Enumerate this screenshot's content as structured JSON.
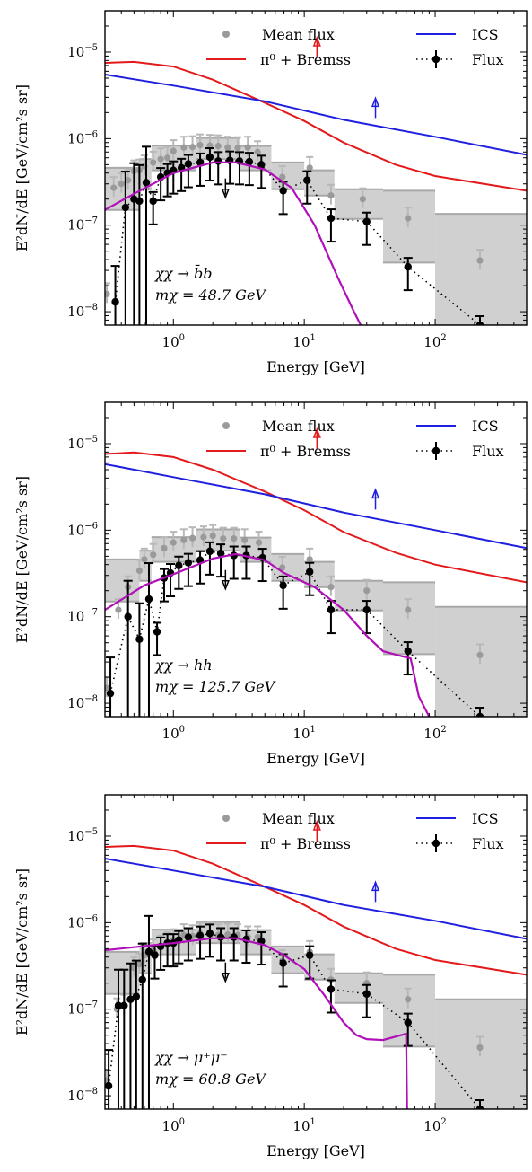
{
  "figure": {
    "ylabel": "E²dN/dE [GeV/cm²s sr]",
    "xlabel": "Energy [GeV]",
    "legend": {
      "mean_flux": "Mean flux",
      "pi0": "π⁰ + Bremss",
      "ics": "ICS",
      "flux": "Flux"
    },
    "colors": {
      "pi0": "#e31a1c",
      "ics": "#1f1fe0",
      "dm": "#b010b8",
      "mean": "#9a9a9a",
      "box": "#d0d0d0",
      "flux": "#000000"
    },
    "x_ticks": [
      {
        "base": "10",
        "exp": "0"
      },
      {
        "base": "10",
        "exp": "1"
      },
      {
        "base": "10",
        "exp": "2"
      }
    ],
    "y_ticks": [
      {
        "base": "10",
        "exp": "−8"
      },
      {
        "base": "10",
        "exp": "−7"
      },
      {
        "base": "10",
        "exp": "−6"
      },
      {
        "base": "10",
        "exp": "−5"
      }
    ]
  },
  "chart_data": [
    {
      "type": "line",
      "annotation": [
        "χχ → b̄b",
        "mχ = 48.7 GeV"
      ],
      "xscale": "log",
      "yscale": "log",
      "xlim": [
        0.3,
        500
      ],
      "ylim": [
        7e-09,
        3e-05
      ],
      "pi0_bremss": [
        [
          0.3,
          7.5e-06
        ],
        [
          0.5,
          7.7e-06
        ],
        [
          1,
          6.8e-06
        ],
        [
          2,
          4.8e-06
        ],
        [
          5,
          2.6e-06
        ],
        [
          10,
          1.6e-06
        ],
        [
          20,
          9e-07
        ],
        [
          50,
          5e-07
        ],
        [
          100,
          3.7e-07
        ],
        [
          500,
          2.5e-07
        ]
      ],
      "ics": [
        [
          0.3,
          5.5e-06
        ],
        [
          1,
          4.1e-06
        ],
        [
          5,
          2.7e-06
        ],
        [
          20,
          1.65e-06
        ],
        [
          100,
          1.05e-06
        ],
        [
          500,
          6.5e-07
        ]
      ],
      "dm_model": [
        [
          0.3,
          1.5e-07
        ],
        [
          0.5,
          2.3e-07
        ],
        [
          1,
          4e-07
        ],
        [
          2,
          5.3e-07
        ],
        [
          3,
          5.3e-07
        ],
        [
          5,
          4.4e-07
        ],
        [
          8,
          2.7e-07
        ],
        [
          12,
          1e-07
        ],
        [
          18,
          2.5e-08
        ],
        [
          24,
          1e-08
        ],
        [
          27,
          7e-09
        ]
      ],
      "upper_limit_arrows": [
        {
          "energy": 12.5,
          "value": 1.1e-05,
          "series": "pi0"
        },
        {
          "energy": 35,
          "value": 2.2e-06,
          "series": "ics"
        }
      ],
      "flux_upper_limit": {
        "energy": 2.5,
        "value": 2.6e-07
      },
      "mean_flux": [
        [
          0.31,
          1.6e-08
        ],
        [
          0.35,
          2.7e-07
        ],
        [
          0.4,
          3e-07
        ],
        [
          0.45,
          3.3e-07
        ],
        [
          0.5,
          4.2e-07
        ],
        [
          0.55,
          4.3e-07
        ],
        [
          0.6,
          4.8e-07
        ],
        [
          0.7,
          5.3e-07
        ],
        [
          0.8,
          5.8e-07
        ],
        [
          0.9,
          6e-07
        ],
        [
          1.0,
          7.2e-07
        ],
        [
          1.2,
          7.9e-07
        ],
        [
          1.4,
          8e-07
        ],
        [
          1.6,
          8.4e-07
        ],
        [
          1.9,
          8.3e-07
        ],
        [
          2.2,
          8.2e-07
        ],
        [
          2.6,
          7.9e-07
        ],
        [
          3.1,
          7.8e-07
        ],
        [
          3.7,
          7.9e-07
        ],
        [
          4.4,
          7e-07
        ],
        [
          6.8,
          3.6e-07
        ],
        [
          11,
          4.6e-07
        ],
        [
          16,
          2.2e-07
        ],
        [
          28,
          2e-07
        ],
        [
          62,
          1.2e-07
        ],
        [
          220,
          3.9e-08
        ]
      ],
      "flux_points": [
        [
          0.36,
          1.3e-08
        ],
        [
          0.43,
          1.6e-07
        ],
        [
          0.5,
          2e-07
        ],
        [
          0.55,
          1.9e-07
        ],
        [
          0.62,
          3.1e-07
        ],
        [
          0.7,
          1.9e-07
        ],
        [
          0.8,
          3.6e-07
        ],
        [
          0.9,
          4e-07
        ],
        [
          1.0,
          4.3e-07
        ],
        [
          1.15,
          4.6e-07
        ],
        [
          1.3,
          5.1e-07
        ],
        [
          1.6,
          5.3e-07
        ],
        [
          1.9,
          6.1e-07
        ],
        [
          2.2,
          5.5e-07
        ],
        [
          2.7,
          5.6e-07
        ],
        [
          3.2,
          5.5e-07
        ],
        [
          3.8,
          5.4e-07
        ],
        [
          4.7,
          5e-07
        ],
        [
          6.9,
          2.5e-07
        ],
        [
          10.5,
          3.3e-07
        ],
        [
          16,
          1.2e-07
        ],
        [
          30,
          1.1e-07
        ],
        [
          62,
          3.3e-08
        ],
        [
          220,
          7e-09
        ]
      ],
      "model_boxes": [
        [
          0.3,
          0.55,
          1.5e-07,
          4.6e-07
        ],
        [
          0.55,
          0.68,
          2.6e-07,
          5.8e-07
        ],
        [
          0.68,
          1.5,
          4.3e-07,
          8.3e-07
        ],
        [
          1.5,
          3.2,
          5.8e-07,
          1.02e-06
        ],
        [
          3.2,
          5.6,
          4.3e-07,
          8.2e-07
        ],
        [
          5.6,
          10,
          2.6e-07,
          5.3e-07
        ],
        [
          10,
          17,
          2.2e-07,
          4.3e-07
        ],
        [
          17,
          40,
          1.18e-07,
          2.6e-07
        ],
        [
          40,
          100,
          3.7e-08,
          2.5e-07
        ],
        [
          100,
          500,
          7e-09,
          1.35e-07
        ]
      ]
    },
    {
      "type": "line",
      "annotation": [
        "χχ → hh",
        "mχ = 125.7 GeV"
      ],
      "xscale": "log",
      "yscale": "log",
      "xlim": [
        0.3,
        500
      ],
      "ylim": [
        7e-09,
        3e-05
      ],
      "pi0_bremss": [
        [
          0.3,
          7.6e-06
        ],
        [
          0.5,
          7.9e-06
        ],
        [
          1,
          7e-06
        ],
        [
          2,
          5e-06
        ],
        [
          5,
          2.8e-06
        ],
        [
          10,
          1.7e-06
        ],
        [
          20,
          9.5e-07
        ],
        [
          50,
          5.5e-07
        ],
        [
          100,
          4e-07
        ],
        [
          500,
          2.5e-07
        ]
      ],
      "ics": [
        [
          0.3,
          5.8e-06
        ],
        [
          1,
          4.1e-06
        ],
        [
          5,
          2.6e-06
        ],
        [
          20,
          1.6e-06
        ],
        [
          100,
          1e-06
        ],
        [
          500,
          6.2e-07
        ]
      ],
      "dm_model": [
        [
          0.3,
          1.2e-07
        ],
        [
          0.6,
          2.3e-07
        ],
        [
          1,
          3.1e-07
        ],
        [
          2,
          4.7e-07
        ],
        [
          3,
          5.3e-07
        ],
        [
          5,
          4.5e-07
        ],
        [
          7,
          3.2e-07
        ],
        [
          12,
          2.2e-07
        ],
        [
          20,
          1.2e-07
        ],
        [
          30,
          6e-08
        ],
        [
          40,
          4e-08
        ],
        [
          55,
          3.5e-08
        ],
        [
          65,
          3.3e-08
        ],
        [
          75,
          1.2e-08
        ],
        [
          90,
          7e-09
        ]
      ],
      "upper_limit_arrows": [
        {
          "energy": 12.5,
          "value": 1.1e-05,
          "series": "pi0"
        },
        {
          "energy": 35,
          "value": 2.2e-06,
          "series": "ics"
        }
      ],
      "flux_upper_limit": {
        "energy": 2.5,
        "value": 2.6e-07
      },
      "mean_flux": [
        [
          0.31,
          1.5e-08
        ],
        [
          0.38,
          1.2e-07
        ],
        [
          0.45,
          2.2e-07
        ],
        [
          0.55,
          3.4e-07
        ],
        [
          0.6,
          4.6e-07
        ],
        [
          0.7,
          5.2e-07
        ],
        [
          0.85,
          6.2e-07
        ],
        [
          1.0,
          7.2e-07
        ],
        [
          1.2,
          7.7e-07
        ],
        [
          1.4,
          8.1e-07
        ],
        [
          1.7,
          8.3e-07
        ],
        [
          2.0,
          8.6e-07
        ],
        [
          2.4,
          8e-07
        ],
        [
          2.9,
          8e-07
        ],
        [
          3.5,
          7.7e-07
        ],
        [
          4.5,
          7.2e-07
        ],
        [
          6.8,
          3.7e-07
        ],
        [
          11,
          4.6e-07
        ],
        [
          16,
          2.2e-07
        ],
        [
          30,
          2e-07
        ],
        [
          62,
          1.2e-07
        ],
        [
          220,
          3.6e-08
        ]
      ],
      "flux_points": [
        [
          0.33,
          1.3e-08
        ],
        [
          0.45,
          1e-07
        ],
        [
          0.55,
          5.5e-08
        ],
        [
          0.65,
          1.6e-07
        ],
        [
          0.75,
          6.7e-08
        ],
        [
          0.85,
          2.8e-07
        ],
        [
          0.95,
          3.2e-07
        ],
        [
          1.1,
          3.9e-07
        ],
        [
          1.3,
          4.2e-07
        ],
        [
          1.6,
          4.5e-07
        ],
        [
          1.9,
          5.7e-07
        ],
        [
          2.3,
          5.4e-07
        ],
        [
          2.9,
          5.1e-07
        ],
        [
          3.6,
          5.1e-07
        ],
        [
          4.8,
          4.8e-07
        ],
        [
          6.9,
          2.3e-07
        ],
        [
          11,
          3.3e-07
        ],
        [
          16,
          1.2e-07
        ],
        [
          30,
          1.2e-07
        ],
        [
          62,
          4e-08
        ],
        [
          220,
          7e-09
        ]
      ],
      "model_boxes": [
        [
          0.3,
          0.55,
          1.5e-07,
          4.6e-07
        ],
        [
          0.55,
          0.68,
          2.6e-07,
          5.8e-07
        ],
        [
          0.68,
          1.5,
          4.3e-07,
          8.3e-07
        ],
        [
          1.5,
          3.2,
          5.8e-07,
          1.02e-06
        ],
        [
          3.2,
          5.6,
          4.3e-07,
          8.2e-07
        ],
        [
          5.6,
          10,
          2.6e-07,
          5.3e-07
        ],
        [
          10,
          17,
          2.2e-07,
          4.3e-07
        ],
        [
          17,
          40,
          1.18e-07,
          2.6e-07
        ],
        [
          40,
          100,
          3.7e-08,
          2.5e-07
        ],
        [
          100,
          500,
          7e-09,
          1.3e-07
        ]
      ]
    },
    {
      "type": "line",
      "annotation": [
        "χχ → μ⁺μ⁻",
        "mχ = 60.8 GeV"
      ],
      "xscale": "log",
      "yscale": "log",
      "xlim": [
        0.3,
        500
      ],
      "ylim": [
        7e-09,
        3e-05
      ],
      "pi0_bremss": [
        [
          0.3,
          7.5e-06
        ],
        [
          0.5,
          7.7e-06
        ],
        [
          1,
          6.8e-06
        ],
        [
          2,
          4.8e-06
        ],
        [
          5,
          2.6e-06
        ],
        [
          10,
          1.6e-06
        ],
        [
          20,
          9e-07
        ],
        [
          50,
          5e-07
        ],
        [
          100,
          3.7e-07
        ],
        [
          500,
          2.5e-07
        ]
      ],
      "ics": [
        [
          0.3,
          5.5e-06
        ],
        [
          1,
          4e-06
        ],
        [
          5,
          2.6e-06
        ],
        [
          20,
          1.6e-06
        ],
        [
          100,
          1.05e-06
        ],
        [
          500,
          6.5e-07
        ]
      ],
      "dm_model": [
        [
          0.3,
          4.8e-07
        ],
        [
          0.5,
          5.2e-07
        ],
        [
          1,
          5.8e-07
        ],
        [
          2,
          6.6e-07
        ],
        [
          3,
          6.6e-07
        ],
        [
          5,
          5.5e-07
        ],
        [
          7,
          4.2e-07
        ],
        [
          10,
          2.9e-07
        ],
        [
          14,
          1.5e-07
        ],
        [
          20,
          7e-08
        ],
        [
          25,
          5e-08
        ],
        [
          30,
          4.5e-08
        ],
        [
          40,
          4.4e-08
        ],
        [
          60,
          5.2e-08
        ],
        [
          61,
          7e-09
        ]
      ],
      "upper_limit_arrows": [
        {
          "energy": 12.5,
          "value": 1.1e-05,
          "series": "pi0"
        },
        {
          "energy": 35,
          "value": 2.2e-06,
          "series": "ics"
        }
      ],
      "flux_upper_limit": {
        "energy": 2.5,
        "value": 2.6e-07
      },
      "mean_flux": [
        [
          0.31,
          1.5e-08
        ],
        [
          0.37,
          1e-07
        ],
        [
          0.42,
          1.1e-07
        ],
        [
          0.5,
          3e-07
        ],
        [
          0.55,
          3.3e-07
        ],
        [
          0.6,
          4.2e-07
        ],
        [
          0.7,
          4.8e-07
        ],
        [
          0.8,
          5.3e-07
        ],
        [
          0.9,
          5.8e-07
        ],
        [
          1.0,
          6.3e-07
        ],
        [
          1.2,
          7.2e-07
        ],
        [
          1.4,
          7e-07
        ],
        [
          1.6,
          7.5e-07
        ],
        [
          1.9,
          7.6e-07
        ],
        [
          2.2,
          7.2e-07
        ],
        [
          2.6,
          7.3e-07
        ],
        [
          3.1,
          7.2e-07
        ],
        [
          3.7,
          6.8e-07
        ],
        [
          4.4,
          6.8e-07
        ],
        [
          6.8,
          3.6e-07
        ],
        [
          11,
          4.6e-07
        ],
        [
          16,
          2.2e-07
        ],
        [
          30,
          2e-07
        ],
        [
          62,
          1.3e-07
        ],
        [
          220,
          3.6e-08
        ]
      ],
      "flux_points": [
        [
          0.32,
          1.3e-08
        ],
        [
          0.38,
          1.1e-07
        ],
        [
          0.42,
          1.1e-07
        ],
        [
          0.47,
          1.3e-07
        ],
        [
          0.52,
          1.4e-07
        ],
        [
          0.58,
          2.2e-07
        ],
        [
          0.65,
          4.6e-07
        ],
        [
          0.72,
          4.2e-07
        ],
        [
          0.8,
          5.3e-07
        ],
        [
          0.9,
          5.8e-07
        ],
        [
          1.0,
          5.8e-07
        ],
        [
          1.1,
          6.3e-07
        ],
        [
          1.3,
          6.8e-07
        ],
        [
          1.6,
          7.1e-07
        ],
        [
          1.9,
          7.5e-07
        ],
        [
          2.3,
          6.8e-07
        ],
        [
          2.9,
          6.8e-07
        ],
        [
          3.6,
          6.4e-07
        ],
        [
          4.7,
          6.1e-07
        ],
        [
          6.9,
          3.4e-07
        ],
        [
          11,
          4.2e-07
        ],
        [
          16,
          1.7e-07
        ],
        [
          30,
          1.5e-07
        ],
        [
          62,
          7e-08
        ],
        [
          220,
          7e-09
        ]
      ],
      "model_boxes": [
        [
          0.3,
          0.55,
          1.5e-07,
          4.6e-07
        ],
        [
          0.55,
          0.68,
          2.6e-07,
          5.8e-07
        ],
        [
          0.68,
          1.5,
          4.3e-07,
          8.3e-07
        ],
        [
          1.5,
          3.2,
          5.8e-07,
          1.02e-06
        ],
        [
          3.2,
          5.6,
          4.3e-07,
          8.2e-07
        ],
        [
          5.6,
          10,
          2.6e-07,
          5.3e-07
        ],
        [
          10,
          17,
          2.2e-07,
          4.3e-07
        ],
        [
          17,
          40,
          1.18e-07,
          2.6e-07
        ],
        [
          40,
          100,
          3.7e-08,
          2.5e-07
        ],
        [
          100,
          500,
          7e-09,
          1.3e-07
        ]
      ]
    }
  ]
}
